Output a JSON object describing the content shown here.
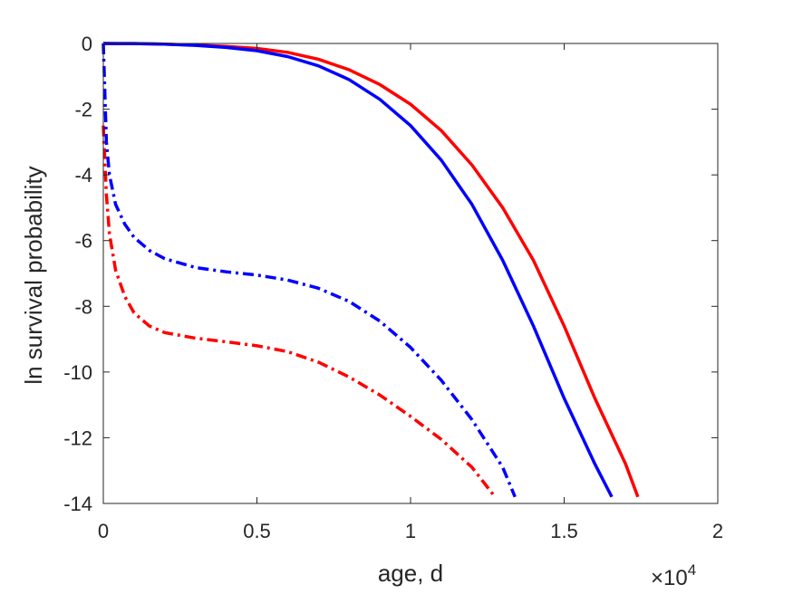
{
  "chart_data": {
    "type": "line",
    "xlabel": "age, d",
    "ylabel": "ln survival probability",
    "xlim": [
      0,
      20000
    ],
    "ylim": [
      -14,
      0
    ],
    "x_exponent_label": "×10",
    "x_exponent_power": "4",
    "x_ticks": [
      0,
      5000,
      10000,
      15000,
      20000
    ],
    "x_tick_labels": [
      "0",
      "0.5",
      "1",
      "1.5",
      "2"
    ],
    "y_ticks": [
      0,
      -2,
      -4,
      -6,
      -8,
      -10,
      -12,
      -14
    ],
    "y_tick_labels": [
      "0",
      "-2",
      "-4",
      "-6",
      "-8",
      "-10",
      "-12",
      "-14"
    ],
    "grid": false,
    "box": true,
    "series": [
      {
        "color": "#ff0000",
        "style": "solid",
        "x": [
          0,
          1000,
          2000,
          3000,
          4000,
          5000,
          6000,
          7000,
          8000,
          9000,
          10000,
          11000,
          12000,
          13000,
          14000,
          15000,
          16000,
          17000,
          17400
        ],
        "y": [
          0,
          -0.005,
          -0.02,
          -0.05,
          -0.09,
          -0.15,
          -0.27,
          -0.48,
          -0.8,
          -1.25,
          -1.85,
          -2.65,
          -3.7,
          -5.0,
          -6.6,
          -8.6,
          -10.8,
          -12.8,
          -13.8
        ]
      },
      {
        "color": "#0000ff",
        "style": "solid",
        "x": [
          0,
          1000,
          2000,
          3000,
          4000,
          5000,
          6000,
          7000,
          8000,
          9000,
          10000,
          11000,
          12000,
          13000,
          14000,
          15000,
          16000,
          16550
        ],
        "y": [
          0,
          -0.005,
          -0.02,
          -0.06,
          -0.12,
          -0.22,
          -0.4,
          -0.68,
          -1.1,
          -1.7,
          -2.5,
          -3.55,
          -4.9,
          -6.6,
          -8.6,
          -10.8,
          -12.8,
          -13.8
        ]
      },
      {
        "color": "#ff0000",
        "style": "dashdot",
        "x": [
          0,
          100,
          200,
          400,
          700,
          1000,
          1500,
          2000,
          3000,
          4000,
          5000,
          6000,
          7000,
          8000,
          9000,
          10000,
          11000,
          12000,
          12750
        ],
        "y": [
          -2.5,
          -4.6,
          -5.8,
          -6.9,
          -7.7,
          -8.2,
          -8.6,
          -8.8,
          -8.97,
          -9.08,
          -9.2,
          -9.38,
          -9.7,
          -10.15,
          -10.7,
          -11.35,
          -12.05,
          -12.9,
          -13.8
        ]
      },
      {
        "color": "#0000ff",
        "style": "dashdot",
        "x": [
          0,
          100,
          200,
          400,
          700,
          1000,
          1500,
          2000,
          3000,
          4000,
          5000,
          6000,
          7000,
          8000,
          9000,
          10000,
          11000,
          12000,
          13000,
          13400
        ],
        "y": [
          0,
          -3.0,
          -4.0,
          -4.9,
          -5.5,
          -5.9,
          -6.3,
          -6.55,
          -6.82,
          -6.95,
          -7.05,
          -7.2,
          -7.45,
          -7.85,
          -8.45,
          -9.25,
          -10.25,
          -11.45,
          -12.9,
          -13.8
        ]
      }
    ]
  }
}
